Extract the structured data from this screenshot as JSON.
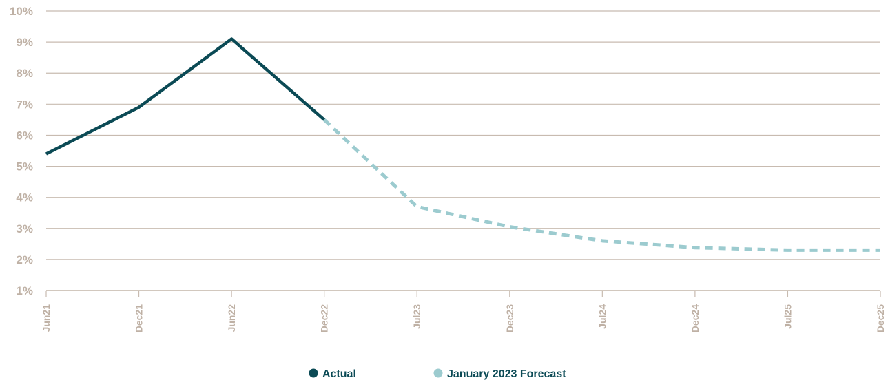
{
  "chart_data": {
    "type": "line",
    "title": "",
    "xlabel": "",
    "ylabel": "",
    "categories": [
      "Jun21",
      "Dec21",
      "Jun22",
      "Dec22",
      "Jul23",
      "Dec23",
      "Jul24",
      "Dec24",
      "Jul25",
      "Dec25"
    ],
    "y_ticks": [
      "1%",
      "2%",
      "3%",
      "4%",
      "5%",
      "6%",
      "7%",
      "8%",
      "9%",
      "10%"
    ],
    "ylim": [
      1,
      10
    ],
    "grid": true,
    "legend_position": "bottom",
    "series": [
      {
        "name": "Actual",
        "style": "solid",
        "color": "#0b4a55",
        "points": [
          {
            "x": "Jun21",
            "y": 5.4
          },
          {
            "x": "Dec21",
            "y": 6.9
          },
          {
            "x": "Jun22",
            "y": 9.1
          },
          {
            "x": "Dec22",
            "y": 6.5
          }
        ]
      },
      {
        "name": "January 2023 Forecast",
        "style": "dashed",
        "color": "#9ccbcf",
        "points": [
          {
            "x": "Dec22",
            "y": 6.5
          },
          {
            "x": "Jul23",
            "y": 3.7
          },
          {
            "x": "Dec23",
            "y": 3.05
          },
          {
            "x": "Jul24",
            "y": 2.6
          },
          {
            "x": "Dec24",
            "y": 2.38
          },
          {
            "x": "Jul25",
            "y": 2.3
          },
          {
            "x": "Dec25",
            "y": 2.3
          }
        ]
      }
    ],
    "colors": {
      "axis_text": "#bfb1a5",
      "grid": "#c8bbb0"
    }
  }
}
